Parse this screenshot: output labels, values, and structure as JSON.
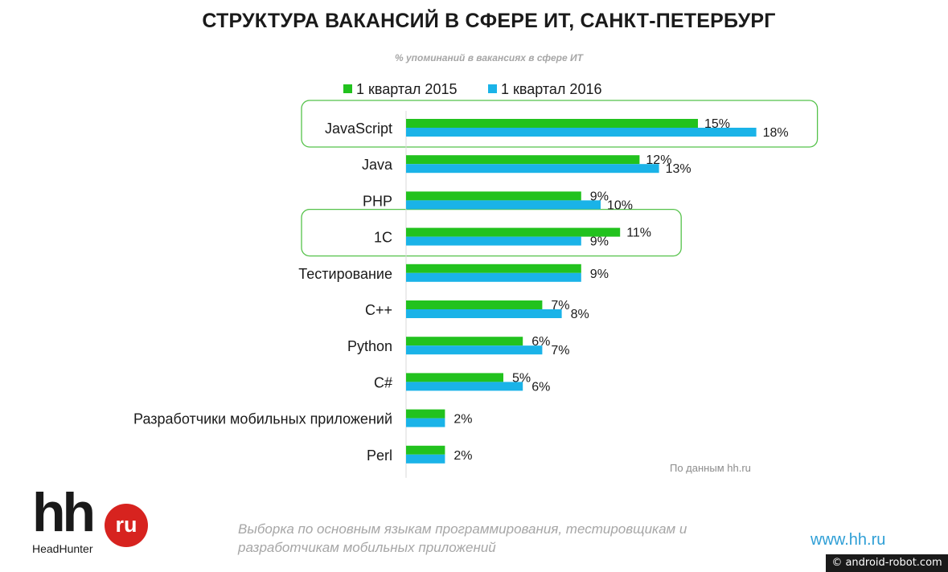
{
  "header": {
    "title": "СТРУКТУРА ВАКАНСИЙ В СФЕРЕ ИТ, САНКТ-ПЕТЕРБУРГ",
    "subtitle": "% упоминаний в вакансиях в сфере ИТ"
  },
  "colors": {
    "series_2015": "#22c21e",
    "series_2016": "#1ab3e8",
    "highlight": "#55c24a"
  },
  "chart_data": {
    "type": "bar",
    "orientation": "horizontal",
    "categories": [
      "JavaScript",
      "Java",
      "PHP",
      "1С",
      "Тестирование",
      "С++",
      "Python",
      "С#",
      "Разработчики мобильных приложений",
      "Perl"
    ],
    "series": [
      {
        "name": "1 квартал 2015",
        "values": [
          15,
          12,
          9,
          11,
          9,
          7,
          6,
          5,
          2,
          2
        ],
        "labels": [
          "15%",
          "12%",
          "9%",
          "11%",
          "9%",
          "7%",
          "6%",
          "5%",
          "2%",
          "2%"
        ]
      },
      {
        "name": "1 квартал 2016",
        "values": [
          18,
          13,
          10,
          9,
          9,
          8,
          7,
          6,
          2,
          2
        ],
        "labels": [
          "18%",
          "13%",
          "10%",
          "9%",
          "",
          "8%",
          "7%",
          "6%",
          "",
          ""
        ]
      }
    ],
    "highlighted_categories": [
      "JavaScript",
      "1С"
    ],
    "legend_position": "top",
    "grid": false
  },
  "source_note": "По данным hh.ru",
  "logo": {
    "mark": "hh",
    "badge": "ru",
    "name": "HeadHunter"
  },
  "footnote": "Выборка по основным языкам программирования, тестировщикам и разработчикам мобильных приложений",
  "site": "www.hh.ru",
  "watermark": "© android-robot.com"
}
